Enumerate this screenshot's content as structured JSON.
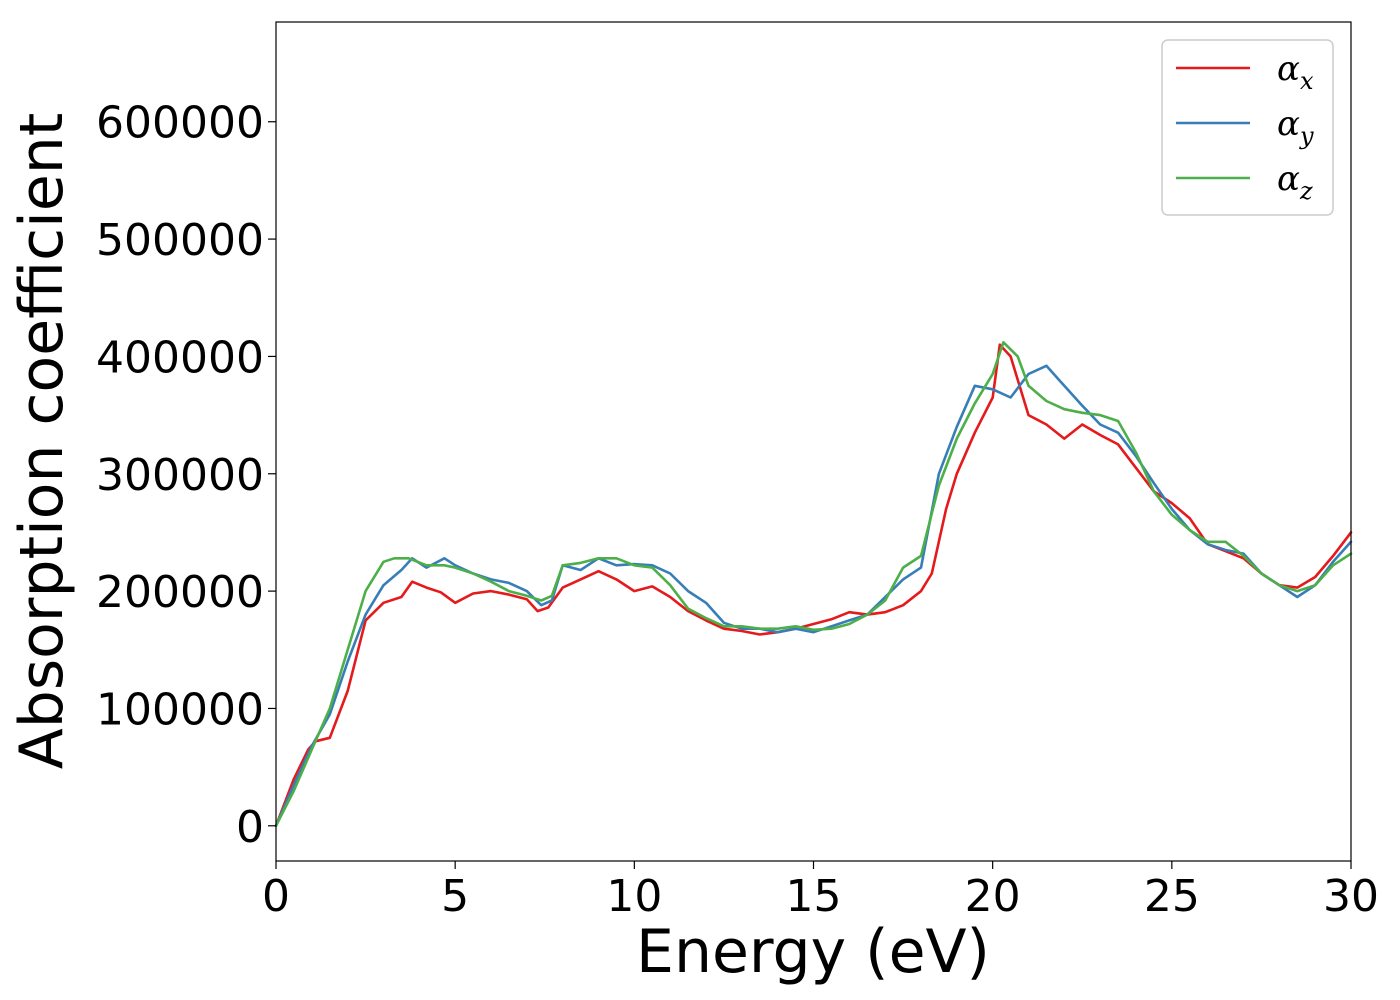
{
  "chart_data": {
    "type": "line",
    "title": "",
    "xlabel": "Energy (eV)",
    "ylabel": "Absorption coefficient",
    "xlim": [
      0,
      30
    ],
    "ylim": [
      -30000,
      685000
    ],
    "xticks": [
      0,
      5,
      10,
      15,
      20,
      25,
      30
    ],
    "yticks": [
      0,
      100000,
      200000,
      300000,
      400000,
      500000,
      600000
    ],
    "xtick_labels": [
      "0",
      "5",
      "10",
      "15",
      "20",
      "25",
      "30"
    ],
    "ytick_labels": [
      "0",
      "100000",
      "200000",
      "300000",
      "400000",
      "500000",
      "600000"
    ],
    "grid": false,
    "legend_position": "top-right",
    "series": [
      {
        "name": "α",
        "subscript": "x",
        "color": "#e41a1c",
        "x": [
          0,
          0.5,
          0.9,
          1.1,
          1.5,
          2.0,
          2.5,
          3.0,
          3.5,
          3.8,
          4.2,
          4.6,
          5.0,
          5.5,
          6.0,
          6.5,
          7.0,
          7.3,
          7.6,
          8.0,
          8.5,
          9.0,
          9.5,
          10.0,
          10.5,
          11.0,
          11.5,
          12.0,
          12.5,
          13.0,
          13.5,
          14.0,
          14.5,
          15.0,
          15.5,
          16.0,
          16.5,
          17.0,
          17.5,
          18.0,
          18.3,
          18.7,
          19.0,
          19.5,
          20.0,
          20.2,
          20.5,
          21.0,
          21.5,
          22.0,
          22.5,
          23.0,
          23.5,
          24.0,
          24.5,
          25.0,
          25.5,
          26.0,
          26.5,
          27.0,
          27.5,
          28.0,
          28.5,
          29.0,
          29.5,
          30.0
        ],
        "values": [
          0,
          40000,
          65000,
          72000,
          75000,
          115000,
          175000,
          190000,
          195000,
          208000,
          203000,
          199000,
          190000,
          198000,
          200000,
          197000,
          193000,
          183000,
          186000,
          203000,
          210000,
          217000,
          210000,
          200000,
          204000,
          195000,
          183000,
          175000,
          168000,
          166000,
          163000,
          165000,
          168000,
          172000,
          176000,
          182000,
          180000,
          182000,
          188000,
          200000,
          215000,
          270000,
          300000,
          335000,
          365000,
          410000,
          400000,
          350000,
          342000,
          330000,
          342000,
          333000,
          325000,
          305000,
          285000,
          275000,
          262000,
          240000,
          234000,
          228000,
          215000,
          205000,
          203000,
          212000,
          230000,
          250000
        ]
      },
      {
        "name": "α",
        "subscript": "y",
        "color": "#377eb8",
        "x": [
          0,
          0.5,
          1.0,
          1.5,
          2.0,
          2.5,
          3.0,
          3.5,
          3.8,
          4.2,
          4.7,
          5.0,
          5.5,
          6.0,
          6.5,
          7.0,
          7.4,
          7.7,
          8.0,
          8.5,
          9.0,
          9.5,
          10.0,
          10.5,
          11.0,
          11.5,
          12.0,
          12.5,
          13.0,
          13.5,
          14.0,
          14.5,
          15.0,
          15.5,
          16.0,
          16.5,
          17.0,
          17.5,
          18.0,
          18.5,
          19.0,
          19.5,
          20.0,
          20.5,
          21.0,
          21.5,
          22.0,
          22.5,
          23.0,
          23.5,
          24.0,
          24.5,
          25.0,
          25.5,
          26.0,
          26.5,
          27.0,
          27.5,
          28.0,
          28.5,
          29.0,
          29.5,
          30.0
        ],
        "values": [
          0,
          35000,
          68000,
          95000,
          140000,
          180000,
          205000,
          218000,
          228000,
          220000,
          228000,
          222000,
          215000,
          210000,
          207000,
          200000,
          188000,
          192000,
          222000,
          218000,
          228000,
          222000,
          223000,
          222000,
          215000,
          200000,
          190000,
          173000,
          168000,
          168000,
          165000,
          168000,
          165000,
          170000,
          175000,
          180000,
          195000,
          210000,
          220000,
          300000,
          340000,
          375000,
          372000,
          365000,
          385000,
          392000,
          375000,
          358000,
          342000,
          335000,
          315000,
          292000,
          270000,
          252000,
          240000,
          235000,
          232000,
          215000,
          205000,
          195000,
          205000,
          225000,
          242000
        ]
      },
      {
        "name": "α",
        "subscript": "z",
        "color": "#4daf4a",
        "x": [
          0,
          0.5,
          1.0,
          1.5,
          2.0,
          2.5,
          3.0,
          3.3,
          3.7,
          4.2,
          4.7,
          5.0,
          5.5,
          6.0,
          6.5,
          7.0,
          7.4,
          7.7,
          8.0,
          8.5,
          9.0,
          9.5,
          10.0,
          10.5,
          11.0,
          11.5,
          12.0,
          12.5,
          13.0,
          13.5,
          14.0,
          14.5,
          15.0,
          15.5,
          16.0,
          16.5,
          17.0,
          17.5,
          18.0,
          18.5,
          19.0,
          19.5,
          20.0,
          20.3,
          20.7,
          21.0,
          21.5,
          22.0,
          22.5,
          23.0,
          23.5,
          24.0,
          24.5,
          25.0,
          25.5,
          26.0,
          26.5,
          27.0,
          27.5,
          28.0,
          28.5,
          29.0,
          29.5,
          30.0
        ],
        "values": [
          0,
          30000,
          65000,
          100000,
          150000,
          200000,
          225000,
          228000,
          228000,
          222000,
          222000,
          220000,
          215000,
          208000,
          200000,
          196000,
          192000,
          196000,
          222000,
          224000,
          228000,
          228000,
          222000,
          220000,
          205000,
          185000,
          177000,
          170000,
          170000,
          168000,
          168000,
          170000,
          167000,
          168000,
          172000,
          180000,
          192000,
          220000,
          230000,
          290000,
          330000,
          360000,
          385000,
          412000,
          400000,
          375000,
          362000,
          355000,
          352000,
          350000,
          345000,
          318000,
          285000,
          265000,
          252000,
          242000,
          242000,
          230000,
          215000,
          205000,
          200000,
          205000,
          222000,
          232000
        ]
      }
    ]
  }
}
